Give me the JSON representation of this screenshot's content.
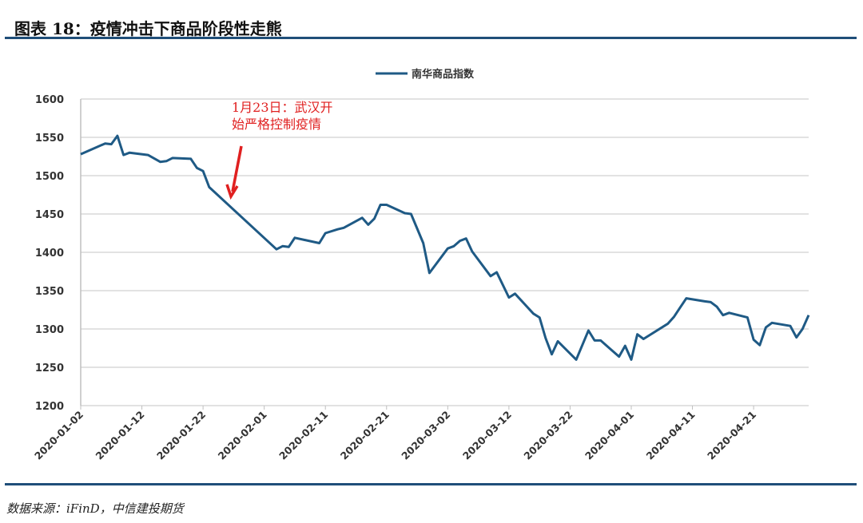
{
  "title": "图表 18：疫情冲击下商品阶段性走熊",
  "source": "数据来源：iFinD，中信建投期货",
  "chart_data": {
    "type": "line",
    "title": "",
    "xlabel": "",
    "ylabel": "",
    "ylim": [
      1200,
      1600
    ],
    "yticks": [
      1200,
      1250,
      1300,
      1350,
      1400,
      1450,
      1500,
      1550,
      1600
    ],
    "xticks": [
      "2020-01-02",
      "2020-01-12",
      "2020-01-22",
      "2020-02-01",
      "2020-02-11",
      "2020-02-21",
      "2020-03-02",
      "2020-03-12",
      "2020-03-22",
      "2020-04-01",
      "2020-04-11",
      "2020-04-21"
    ],
    "xlim": [
      "2020-01-02",
      "2020-04-30"
    ],
    "grid": true,
    "legend": "top-center",
    "color": "#1f5a85",
    "annotation": {
      "lines": [
        "1月23日：武汉开",
        "始严格控制疫情"
      ],
      "color": "#e02020",
      "date": "2020-01-23"
    },
    "series": [
      {
        "name": "南华商品指数",
        "x": [
          "2020-01-02",
          "2020-01-06",
          "2020-01-07",
          "2020-01-08",
          "2020-01-09",
          "2020-01-10",
          "2020-01-13",
          "2020-01-15",
          "2020-01-16",
          "2020-01-17",
          "2020-01-20",
          "2020-01-21",
          "2020-01-22",
          "2020-01-23",
          "2020-02-03",
          "2020-02-04",
          "2020-02-05",
          "2020-02-06",
          "2020-02-10",
          "2020-02-11",
          "2020-02-13",
          "2020-02-14",
          "2020-02-17",
          "2020-02-18",
          "2020-02-19",
          "2020-02-20",
          "2020-02-21",
          "2020-02-24",
          "2020-02-25",
          "2020-02-27",
          "2020-02-28",
          "2020-03-02",
          "2020-03-03",
          "2020-03-04",
          "2020-03-05",
          "2020-03-06",
          "2020-03-09",
          "2020-03-10",
          "2020-03-12",
          "2020-03-13",
          "2020-03-16",
          "2020-03-17",
          "2020-03-18",
          "2020-03-19",
          "2020-03-20",
          "2020-03-23",
          "2020-03-25",
          "2020-03-26",
          "2020-03-27",
          "2020-03-30",
          "2020-03-31",
          "2020-04-01",
          "2020-04-02",
          "2020-04-03",
          "2020-04-07",
          "2020-04-08",
          "2020-04-09",
          "2020-04-10",
          "2020-04-13",
          "2020-04-14",
          "2020-04-15",
          "2020-04-16",
          "2020-04-17",
          "2020-04-20",
          "2020-04-21",
          "2020-04-22",
          "2020-04-23",
          "2020-04-24",
          "2020-04-27",
          "2020-04-28",
          "2020-04-29",
          "2020-04-30"
        ],
        "values": [
          1528,
          1542,
          1541,
          1552,
          1527,
          1530,
          1527,
          1518,
          1519,
          1523,
          1522,
          1510,
          1506,
          1485,
          1404,
          1408,
          1407,
          1419,
          1412,
          1425,
          1430,
          1432,
          1445,
          1436,
          1444,
          1462,
          1462,
          1451,
          1450,
          1412,
          1373,
          1405,
          1408,
          1415,
          1418,
          1401,
          1369,
          1374,
          1341,
          1346,
          1320,
          1315,
          1288,
          1267,
          1284,
          1260,
          1298,
          1285,
          1285,
          1264,
          1278,
          1260,
          1293,
          1287,
          1307,
          1316,
          1328,
          1340,
          1336,
          1335,
          1329,
          1318,
          1321,
          1315,
          1286,
          1279,
          1302,
          1308,
          1304,
          1289,
          1300,
          1318
        ]
      }
    ]
  }
}
